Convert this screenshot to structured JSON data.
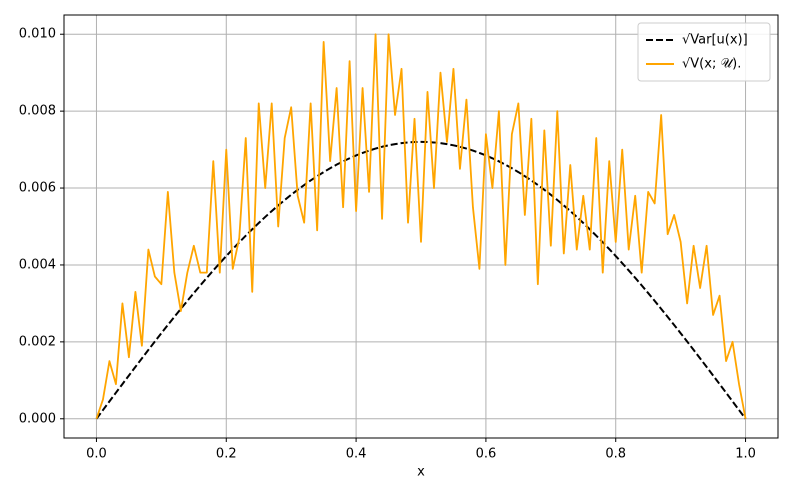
{
  "chart_data": {
    "type": "line",
    "x_label": "x",
    "x": [
      0,
      0.01,
      0.02,
      0.03,
      0.04,
      0.05,
      0.06,
      0.07,
      0.08,
      0.09,
      0.1,
      0.11,
      0.12,
      0.13,
      0.14,
      0.15,
      0.16,
      0.17,
      0.18,
      0.19,
      0.2,
      0.21,
      0.22,
      0.23,
      0.24,
      0.25,
      0.26,
      0.27,
      0.28,
      0.29,
      0.3,
      0.31,
      0.32,
      0.33,
      0.34,
      0.35,
      0.36,
      0.37,
      0.38,
      0.39,
      0.4,
      0.41,
      0.42,
      0.43,
      0.44,
      0.45,
      0.46,
      0.47,
      0.48,
      0.49,
      0.5,
      0.51,
      0.52,
      0.53,
      0.54,
      0.55,
      0.56,
      0.57,
      0.58,
      0.59,
      0.6,
      0.61,
      0.62,
      0.63,
      0.64,
      0.65,
      0.66,
      0.67,
      0.68,
      0.69,
      0.7,
      0.71,
      0.72,
      0.73,
      0.74,
      0.75,
      0.76,
      0.77,
      0.78,
      0.79,
      0.8,
      0.81,
      0.82,
      0.83,
      0.84,
      0.85,
      0.86,
      0.87,
      0.88,
      0.89,
      0.9,
      0.91,
      0.92,
      0.93,
      0.94,
      0.95,
      0.96,
      0.97,
      0.98,
      0.99,
      1
    ],
    "series": [
      {
        "name": "√Var[u(x)]",
        "color": "#000000",
        "dashed": true,
        "values": [
          0,
          0.000226,
          0.000452,
          0.000678,
          0.000902,
          0.001126,
          0.001349,
          0.00157,
          0.001791,
          0.002009,
          0.002225,
          0.002439,
          0.00265,
          0.002859,
          0.003066,
          0.003269,
          0.003469,
          0.003665,
          0.003858,
          0.004047,
          0.004232,
          0.004413,
          0.004589,
          0.004761,
          0.004928,
          0.005091,
          0.005249,
          0.005401,
          0.005548,
          0.005689,
          0.005825,
          0.005955,
          0.006079,
          0.006197,
          0.006309,
          0.006415,
          0.006515,
          0.006608,
          0.006695,
          0.006774,
          0.006848,
          0.006914,
          0.006974,
          0.007026,
          0.007073,
          0.007111,
          0.007143,
          0.007168,
          0.007186,
          0.007196,
          0.0072,
          0.007196,
          0.007186,
          0.007168,
          0.007143,
          0.007111,
          0.007073,
          0.007026,
          0.006974,
          0.006914,
          0.006848,
          0.006774,
          0.006695,
          0.006608,
          0.006515,
          0.006415,
          0.006309,
          0.006197,
          0.006079,
          0.005955,
          0.005825,
          0.005689,
          0.005548,
          0.005401,
          0.005249,
          0.005091,
          0.004928,
          0.004761,
          0.004589,
          0.004413,
          0.004232,
          0.004047,
          0.003858,
          0.003665,
          0.003469,
          0.003269,
          0.003066,
          0.002859,
          0.00265,
          0.002439,
          0.002225,
          0.002009,
          0.001791,
          0.00157,
          0.001349,
          0.001126,
          0.000902,
          0.000678,
          0.000452,
          0.000226,
          0
        ]
      },
      {
        "name": "√V(x; 𝒰).",
        "color": "#ffa500",
        "dashed": false,
        "values": [
          0,
          0.0005,
          0.0015,
          0.0009,
          0.003,
          0.0016,
          0.0033,
          0.0019,
          0.0044,
          0.0037,
          0.0035,
          0.0059,
          0.0038,
          0.0028,
          0.0038,
          0.0045,
          0.0038,
          0.0038,
          0.0067,
          0.0038,
          0.007,
          0.0039,
          0.0047,
          0.0073,
          0.0033,
          0.0082,
          0.006,
          0.0082,
          0.005,
          0.0073,
          0.0081,
          0.0058,
          0.0051,
          0.0082,
          0.0049,
          0.0098,
          0.0067,
          0.0086,
          0.0055,
          0.0093,
          0.0054,
          0.0086,
          0.0059,
          0.01,
          0.0052,
          0.01,
          0.0079,
          0.0091,
          0.0051,
          0.0078,
          0.0046,
          0.0085,
          0.006,
          0.009,
          0.0072,
          0.0091,
          0.0065,
          0.0083,
          0.0055,
          0.0039,
          0.0074,
          0.006,
          0.008,
          0.004,
          0.0074,
          0.0082,
          0.0053,
          0.0078,
          0.0035,
          0.0075,
          0.0045,
          0.008,
          0.0043,
          0.0066,
          0.0044,
          0.0058,
          0.0044,
          0.0073,
          0.0038,
          0.0067,
          0.0046,
          0.007,
          0.0044,
          0.0058,
          0.0038,
          0.0059,
          0.0056,
          0.0079,
          0.0048,
          0.0053,
          0.0046,
          0.003,
          0.0045,
          0.0034,
          0.0045,
          0.0027,
          0.0032,
          0.0015,
          0.002,
          0.0009,
          0
        ]
      }
    ],
    "xlim": [
      -0.05,
      1.05
    ],
    "ylim": [
      -0.0005,
      0.0105
    ],
    "xticks": [
      {
        "value": 0,
        "label": "0.0"
      },
      0.2,
      0.4,
      0.6,
      0.8,
      {
        "value": 1,
        "label": "1.0"
      }
    ],
    "yticks": [
      {
        "value": 0,
        "label": "0.000"
      },
      {
        "value": 0.002,
        "label": "0.002"
      },
      {
        "value": 0.004,
        "label": "0.004"
      },
      {
        "value": 0.006,
        "label": "0.006"
      },
      {
        "value": 0.008,
        "label": "0.008"
      },
      {
        "value": 0.01,
        "label": "0.010"
      }
    ],
    "grid": true,
    "legend": "upper right"
  }
}
